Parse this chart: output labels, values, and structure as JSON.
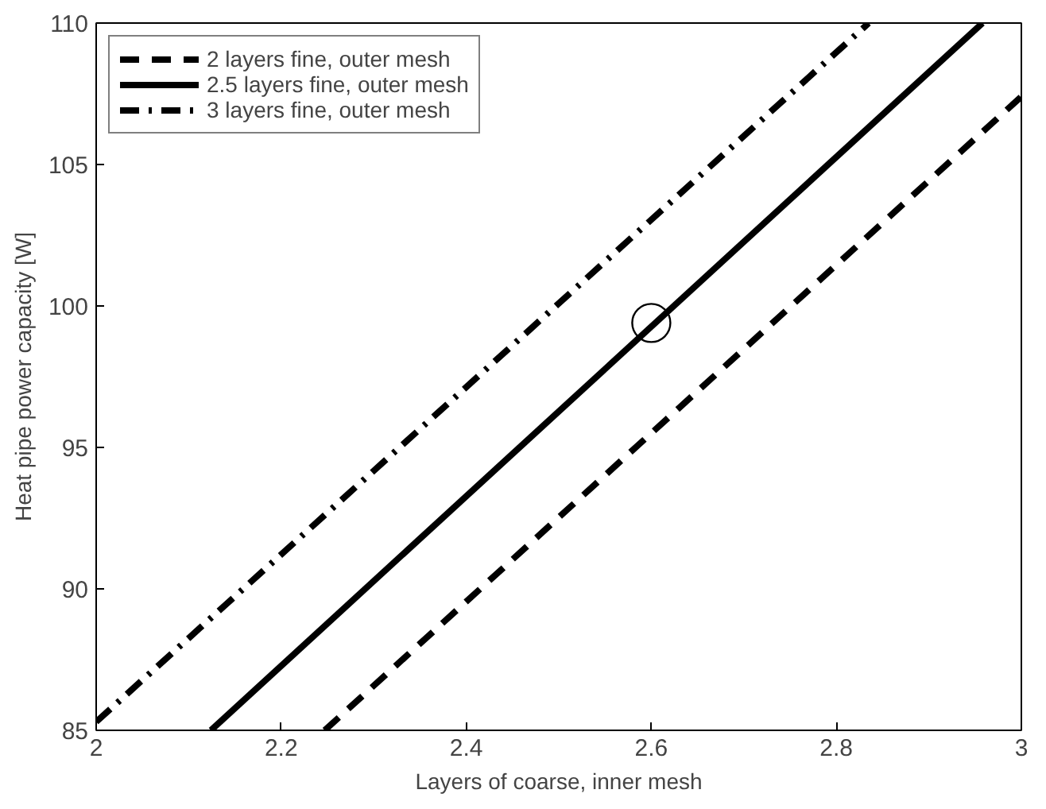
{
  "chart_data": {
    "type": "line",
    "xlabel": "Layers of coarse, inner mesh",
    "ylabel": "Heat pipe power capacity [W]",
    "xlim": [
      2,
      3
    ],
    "ylim": [
      85,
      110
    ],
    "xticks": [
      2,
      2.2,
      2.4,
      2.6,
      2.8,
      3
    ],
    "yticks": [
      85,
      90,
      95,
      100,
      105,
      110
    ],
    "grid": false,
    "legend": "top left",
    "series": [
      {
        "name": "2 layers fine, outer mesh",
        "color": "#000000",
        "line_style": "dashed",
        "x": [
          2.247,
          3.0
        ],
        "values": [
          85,
          107.4
        ]
      },
      {
        "name": "2.5 layers fine, outer mesh",
        "color": "#000000",
        "line_style": "solid",
        "x": [
          2.124,
          2.958
        ],
        "values": [
          85,
          110
        ]
      },
      {
        "name": "3 layers fine, outer mesh",
        "color": "#000000",
        "line_style": "dashdot",
        "x": [
          2.0,
          2.835
        ],
        "values": [
          85.3,
          110
        ]
      },
      {
        "type": "scatter",
        "marker": "circle",
        "color": "#000000",
        "x": [
          2.6
        ],
        "values": [
          99.4
        ]
      }
    ]
  }
}
